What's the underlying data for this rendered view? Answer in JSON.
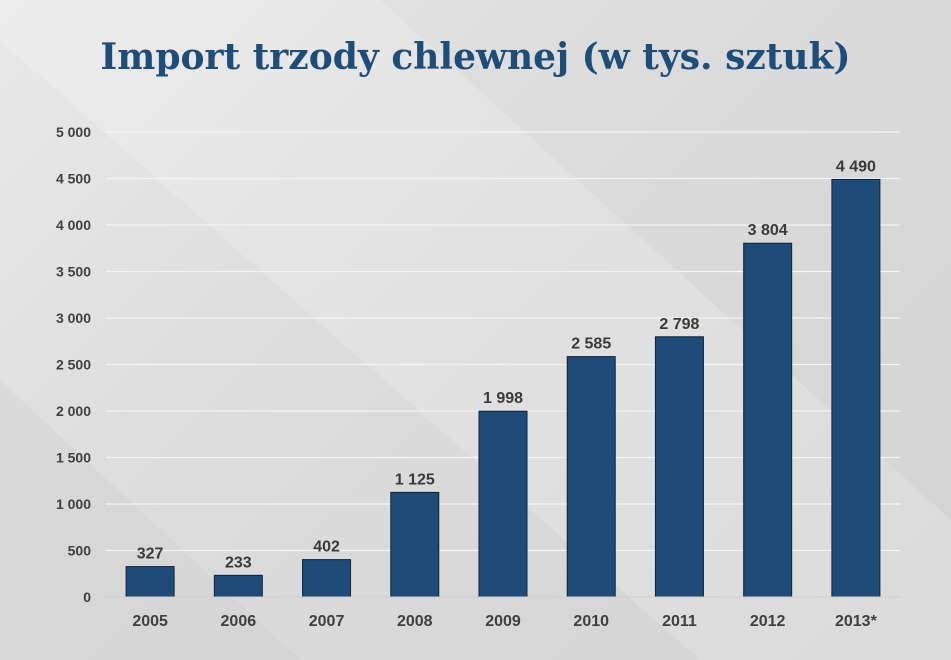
{
  "chart_data": {
    "type": "bar",
    "title": "Import trzody chlewnej (w tys. sztuk)",
    "categories": [
      "2005",
      "2006",
      "2007",
      "2008",
      "2009",
      "2010",
      "2011",
      "2012",
      "2013*"
    ],
    "values": [
      327,
      233,
      402,
      1125,
      1998,
      2585,
      2798,
      3804,
      4490
    ],
    "value_labels": [
      "327",
      "233",
      "402",
      "1 125",
      "1 998",
      "2 585",
      "2 798",
      "3 804",
      "4 490"
    ],
    "y_ticks": [
      0,
      500,
      1000,
      1500,
      2000,
      2500,
      3000,
      3500,
      4000,
      4500,
      5000
    ],
    "y_tick_labels": [
      "0",
      "500",
      "1 000",
      "1 500",
      "2 000",
      "2 500",
      "3 000",
      "3 500",
      "4 000",
      "4 500",
      "5 000"
    ],
    "ylim": [
      0,
      5000
    ],
    "xlabel": "",
    "ylabel": "",
    "grid": true,
    "colors": {
      "bar": "#1f4b78",
      "bar_outline": "#0f2438",
      "title": "#1f4d7a",
      "grid": "#f4f4f4",
      "text": "#404040"
    }
  }
}
